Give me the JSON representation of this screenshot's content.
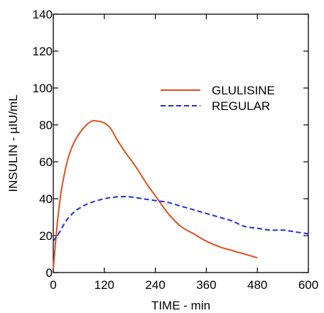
{
  "chart_data": {
    "type": "line",
    "title": "",
    "xlabel": "TIME - min",
    "ylabel": "INSULIN - µIU/mL",
    "xlim": [
      0,
      600
    ],
    "ylim": [
      0,
      140
    ],
    "xticks": [
      0,
      120,
      240,
      360,
      480,
      600
    ],
    "yticks": [
      0,
      20,
      40,
      60,
      80,
      100,
      120,
      140
    ],
    "grid": false,
    "legend_position": "top-right",
    "series": [
      {
        "name": "GLULISINE",
        "color": "#e0501e",
        "dash": "solid",
        "x": [
          0,
          10,
          20,
          35,
          50,
          70,
          90,
          105,
          120,
          135,
          150,
          170,
          195,
          220,
          245,
          270,
          300,
          330,
          360,
          390,
          420,
          450,
          480
        ],
        "y": [
          2,
          28,
          46,
          62,
          71,
          78,
          82,
          82,
          81,
          78,
          72,
          65,
          57,
          48,
          40,
          32,
          25,
          21,
          17,
          14,
          12,
          10,
          8
        ]
      },
      {
        "name": "REGULAR",
        "color": "#1f2fd6",
        "dash": "dashed",
        "x": [
          0,
          15,
          30,
          50,
          70,
          90,
          120,
          150,
          180,
          210,
          240,
          270,
          300,
          330,
          360,
          390,
          420,
          450,
          480,
          510,
          540,
          570,
          600
        ],
        "y": [
          17,
          22,
          28,
          33,
          36,
          38,
          40,
          41,
          41,
          40,
          39,
          38,
          36,
          34,
          32,
          30,
          28,
          25,
          24,
          23,
          23,
          22,
          21
        ]
      }
    ]
  }
}
